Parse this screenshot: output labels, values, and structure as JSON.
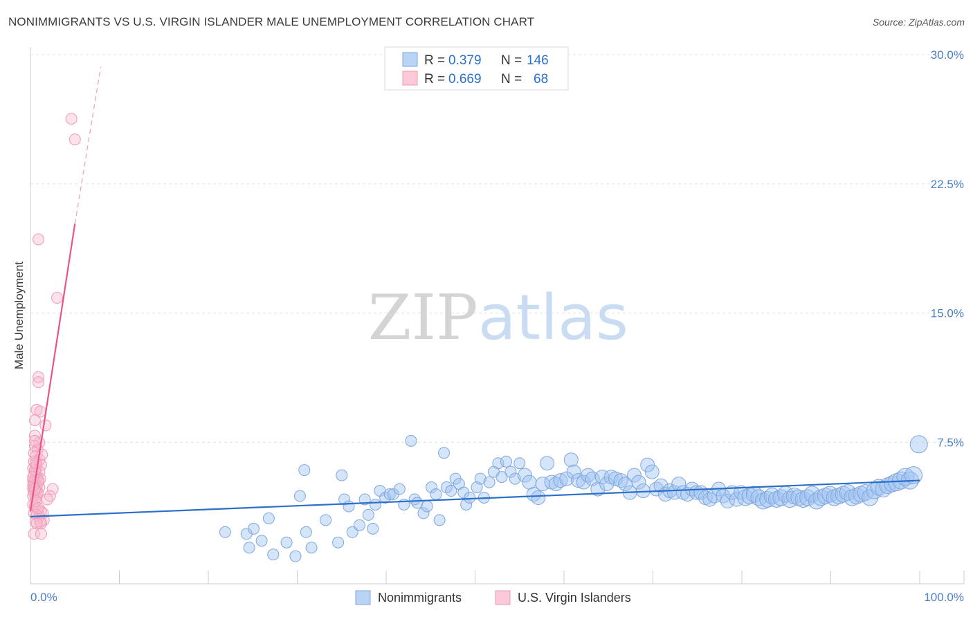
{
  "chart_data": {
    "type": "scatter",
    "title": "NONIMMIGRANTS VS U.S. VIRGIN ISLANDER MALE UNEMPLOYMENT CORRELATION CHART",
    "source": "Source: ZipAtlas.com",
    "xlabel": "",
    "ylabel": "Male Unemployment",
    "xlim": [
      0,
      100
    ],
    "ylim": [
      0,
      31.5
    ],
    "x_tick_labels": [
      "0.0%",
      "100.0%"
    ],
    "y_ticks": [
      7.5,
      15.0,
      22.5,
      30.0
    ],
    "y_tick_labels": [
      "7.5%",
      "15.0%",
      "22.5%",
      "30.0%"
    ],
    "grid": true,
    "legend_position": "top-center",
    "watermark": {
      "part1": "ZIP",
      "part2": "atlas"
    },
    "stats": [
      {
        "r_label": "R =",
        "r_value": "0.379",
        "n_label": "N =",
        "n_value": "146"
      },
      {
        "r_label": "R =",
        "r_value": "0.669",
        "n_label": "N =",
        "n_value": "68"
      }
    ],
    "series": [
      {
        "name": "Nonimmigrants",
        "color": "#8ab4f0",
        "line_color": "#2a6fc9",
        "trend": {
          "x": [
            0,
            100
          ],
          "y": [
            3.9,
            6.0
          ]
        },
        "points": [
          [
            21.9,
            3.0
          ],
          [
            24.3,
            2.9
          ],
          [
            25.1,
            3.2
          ],
          [
            24.6,
            2.1
          ],
          [
            26.0,
            2.5
          ],
          [
            26.8,
            3.8
          ],
          [
            27.3,
            1.7
          ],
          [
            28.8,
            2.4
          ],
          [
            29.8,
            1.6
          ],
          [
            30.3,
            5.1
          ],
          [
            30.8,
            6.6
          ],
          [
            31.0,
            3.0
          ],
          [
            31.6,
            2.1
          ],
          [
            33.2,
            3.7
          ],
          [
            34.6,
            2.4
          ],
          [
            35.0,
            6.3
          ],
          [
            35.3,
            4.9
          ],
          [
            35.8,
            4.5
          ],
          [
            36.2,
            3.0
          ],
          [
            37.0,
            3.4
          ],
          [
            37.6,
            4.9
          ],
          [
            38.0,
            4.0
          ],
          [
            38.5,
            3.2
          ],
          [
            38.8,
            4.6
          ],
          [
            39.3,
            5.4
          ],
          [
            39.9,
            5.0
          ],
          [
            40.4,
            5.2
          ],
          [
            40.8,
            5.2
          ],
          [
            41.5,
            5.5
          ],
          [
            42.0,
            4.6
          ],
          [
            42.8,
            8.3
          ],
          [
            43.2,
            4.9
          ],
          [
            43.5,
            4.7
          ],
          [
            44.2,
            4.1
          ],
          [
            44.6,
            4.5
          ],
          [
            45.1,
            5.6
          ],
          [
            45.6,
            5.2
          ],
          [
            46.0,
            3.7
          ],
          [
            46.5,
            7.6
          ],
          [
            46.8,
            5.6
          ],
          [
            47.3,
            5.4
          ],
          [
            47.8,
            6.1
          ],
          [
            48.2,
            5.8
          ],
          [
            48.7,
            5.3
          ],
          [
            49.0,
            4.6
          ],
          [
            49.4,
            5.0
          ],
          [
            50.2,
            5.6
          ],
          [
            50.6,
            6.1
          ],
          [
            51.0,
            5.0
          ],
          [
            51.6,
            5.9
          ],
          [
            52.1,
            6.5
          ],
          [
            52.6,
            7.0
          ],
          [
            53.0,
            6.2
          ],
          [
            53.5,
            7.1
          ],
          [
            54.0,
            6.5
          ],
          [
            54.5,
            6.1
          ],
          [
            55.0,
            7.0
          ],
          [
            55.6,
            6.3
          ],
          [
            56.1,
            5.9
          ],
          [
            56.6,
            5.2
          ],
          [
            57.1,
            5.0
          ],
          [
            57.6,
            5.8
          ],
          [
            58.1,
            7.0
          ],
          [
            58.6,
            5.9
          ],
          [
            59.1,
            5.8
          ],
          [
            59.6,
            6.0
          ],
          [
            60.3,
            6.1
          ],
          [
            60.8,
            7.2
          ],
          [
            61.1,
            6.5
          ],
          [
            61.6,
            6.0
          ],
          [
            62.2,
            5.9
          ],
          [
            62.7,
            6.3
          ],
          [
            63.2,
            6.1
          ],
          [
            63.8,
            5.5
          ],
          [
            64.3,
            6.2
          ],
          [
            64.8,
            5.8
          ],
          [
            65.3,
            6.2
          ],
          [
            65.8,
            6.1
          ],
          [
            66.4,
            6.0
          ],
          [
            66.9,
            5.8
          ],
          [
            67.4,
            5.3
          ],
          [
            67.9,
            6.3
          ],
          [
            68.4,
            5.9
          ],
          [
            68.9,
            5.4
          ],
          [
            69.4,
            6.9
          ],
          [
            69.9,
            6.5
          ],
          [
            70.4,
            5.5
          ],
          [
            70.9,
            5.7
          ],
          [
            71.4,
            5.2
          ],
          [
            71.9,
            5.4
          ],
          [
            72.4,
            5.3
          ],
          [
            72.9,
            5.8
          ],
          [
            73.4,
            5.3
          ],
          [
            73.9,
            5.2
          ],
          [
            74.4,
            5.5
          ],
          [
            74.9,
            5.3
          ],
          [
            75.4,
            5.3
          ],
          [
            75.9,
            5.0
          ],
          [
            76.4,
            4.9
          ],
          [
            76.9,
            5.1
          ],
          [
            77.4,
            5.5
          ],
          [
            77.9,
            5.1
          ],
          [
            78.4,
            4.8
          ],
          [
            78.9,
            5.3
          ],
          [
            79.4,
            4.9
          ],
          [
            79.9,
            5.3
          ],
          [
            80.4,
            5.0
          ],
          [
            80.9,
            5.1
          ],
          [
            81.4,
            5.2
          ],
          [
            81.9,
            5.0
          ],
          [
            82.4,
            4.8
          ],
          [
            82.9,
            4.9
          ],
          [
            83.4,
            5.1
          ],
          [
            83.9,
            4.9
          ],
          [
            84.4,
            5.0
          ],
          [
            84.9,
            5.2
          ],
          [
            85.4,
            4.9
          ],
          [
            85.9,
            5.1
          ],
          [
            86.4,
            5.0
          ],
          [
            86.9,
            4.9
          ],
          [
            87.4,
            5.0
          ],
          [
            87.9,
            5.2
          ],
          [
            88.4,
            4.8
          ],
          [
            88.9,
            5.0
          ],
          [
            89.4,
            5.1
          ],
          [
            89.9,
            5.2
          ],
          [
            90.4,
            5.0
          ],
          [
            90.9,
            5.1
          ],
          [
            91.4,
            5.2
          ],
          [
            91.9,
            5.3
          ],
          [
            92.4,
            5.0
          ],
          [
            92.9,
            5.1
          ],
          [
            93.4,
            5.2
          ],
          [
            93.9,
            5.3
          ],
          [
            94.4,
            5.0
          ],
          [
            94.9,
            5.4
          ],
          [
            95.4,
            5.6
          ],
          [
            95.9,
            5.5
          ],
          [
            96.4,
            5.7
          ],
          [
            96.9,
            5.8
          ],
          [
            97.4,
            5.9
          ],
          [
            97.9,
            6.0
          ],
          [
            98.4,
            6.2
          ],
          [
            98.9,
            6.0
          ],
          [
            99.3,
            6.3
          ],
          [
            99.9,
            8.1
          ]
        ]
      },
      {
        "name": "U.S. Virgin Islanders",
        "color": "#f5a0b9",
        "line_color": "#e8548a",
        "trend": {
          "x": [
            0,
            5.0
          ],
          "y": [
            4.2,
            20.9
          ]
        },
        "trend_dashed": {
          "x": [
            5.0,
            7.9
          ],
          "y": [
            20.9,
            30.0
          ]
        },
        "points": [
          [
            4.6,
            27.0
          ],
          [
            5.0,
            25.8
          ],
          [
            0.9,
            20.0
          ],
          [
            3.0,
            16.6
          ],
          [
            0.9,
            12.0
          ],
          [
            0.9,
            11.7
          ],
          [
            0.7,
            10.1
          ],
          [
            1.1,
            10.0
          ],
          [
            0.5,
            9.5
          ],
          [
            1.7,
            9.2
          ],
          [
            0.5,
            8.6
          ],
          [
            1.0,
            8.2
          ],
          [
            0.5,
            8.0
          ],
          [
            0.8,
            7.8
          ],
          [
            0.4,
            7.6
          ],
          [
            0.6,
            7.4
          ],
          [
            1.0,
            7.2
          ],
          [
            0.4,
            7.1
          ],
          [
            0.7,
            6.9
          ],
          [
            1.2,
            6.9
          ],
          [
            0.3,
            6.7
          ],
          [
            0.6,
            6.5
          ],
          [
            1.0,
            6.5
          ],
          [
            0.4,
            6.3
          ],
          [
            0.7,
            6.2
          ],
          [
            1.1,
            6.1
          ],
          [
            0.3,
            6.0
          ],
          [
            0.6,
            5.9
          ],
          [
            0.9,
            5.9
          ],
          [
            0.4,
            5.7
          ],
          [
            0.7,
            5.6
          ],
          [
            1.0,
            5.6
          ],
          [
            0.3,
            5.5
          ],
          [
            0.6,
            5.4
          ],
          [
            2.5,
            5.5
          ],
          [
            0.4,
            5.3
          ],
          [
            0.8,
            5.2
          ],
          [
            0.3,
            5.1
          ],
          [
            0.6,
            5.0
          ],
          [
            2.2,
            5.1
          ],
          [
            1.9,
            4.9
          ],
          [
            0.5,
            4.5
          ],
          [
            0.8,
            4.3
          ],
          [
            1.2,
            4.2
          ],
          [
            0.4,
            4.1
          ],
          [
            0.7,
            4.0
          ],
          [
            1.0,
            3.9
          ],
          [
            1.5,
            3.7
          ],
          [
            0.6,
            3.6
          ],
          [
            1.2,
            3.5
          ],
          [
            0.4,
            2.9
          ],
          [
            1.2,
            2.9
          ],
          [
            0.4,
            5.9
          ],
          [
            0.5,
            6.6
          ],
          [
            0.8,
            5.3
          ],
          [
            1.4,
            4.1
          ],
          [
            0.3,
            4.6
          ],
          [
            0.6,
            7.0
          ],
          [
            0.9,
            6.0
          ],
          [
            0.3,
            5.7
          ],
          [
            0.5,
            5.5
          ],
          [
            0.6,
            4.8
          ],
          [
            0.9,
            4.4
          ],
          [
            1.1,
            3.6
          ],
          [
            0.7,
            3.5
          ],
          [
            0.3,
            6.2
          ],
          [
            1.3,
            7.5
          ],
          [
            0.5,
            8.3
          ]
        ]
      }
    ]
  }
}
